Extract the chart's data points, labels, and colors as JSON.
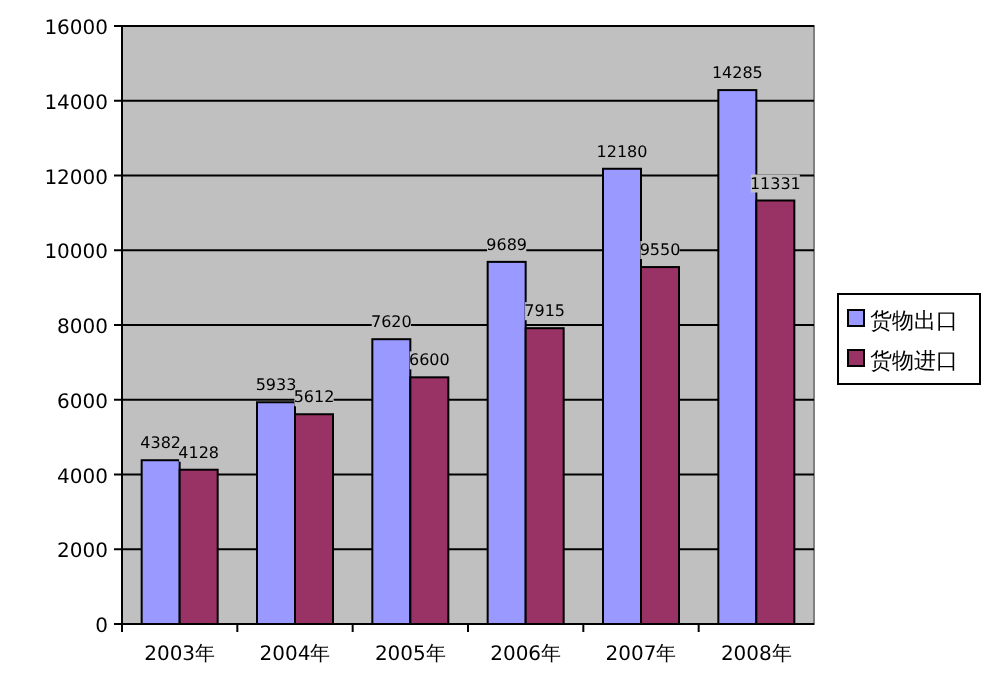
{
  "chart_data": {
    "type": "bar",
    "categories": [
      "2003年",
      "2004年",
      "2005年",
      "2006年",
      "2007年",
      "2008年"
    ],
    "series": [
      {
        "name": "货物出口",
        "color": "#9999ff",
        "values": [
          4382,
          5933,
          7620,
          9689,
          12180,
          14285
        ]
      },
      {
        "name": "货物进口",
        "color": "#993366",
        "values": [
          4128,
          5612,
          6600,
          7915,
          9550,
          11331
        ]
      }
    ],
    "ylim": [
      0,
      16000
    ],
    "yticks": [
      0,
      2000,
      4000,
      6000,
      8000,
      10000,
      12000,
      14000,
      16000
    ],
    "grid": "y",
    "legend": "right",
    "data_labels": true
  }
}
